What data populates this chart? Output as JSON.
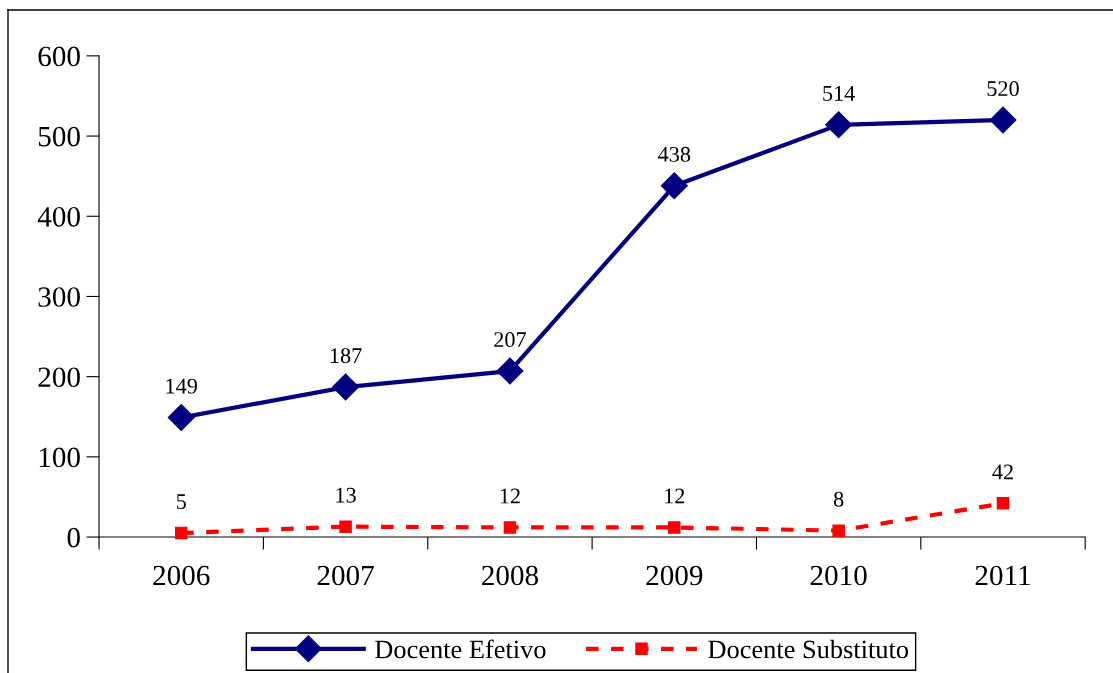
{
  "chart_data": {
    "type": "line",
    "categories": [
      "2006",
      "2007",
      "2008",
      "2009",
      "2010",
      "2011"
    ],
    "series": [
      {
        "name": "Docente Efetivo",
        "color": "#000080",
        "values": [
          149,
          187,
          207,
          438,
          514,
          520
        ],
        "marker": "diamond",
        "line_style": "solid"
      },
      {
        "name": "Docente Substituto",
        "color": "#ff0000",
        "values": [
          5,
          13,
          12,
          12,
          8,
          42
        ],
        "marker": "square",
        "line_style": "dashed"
      }
    ],
    "ylim": [
      0,
      600
    ],
    "yticks": [
      0,
      100,
      200,
      300,
      400,
      500,
      600
    ],
    "grid": false,
    "legend": "bottom",
    "data_labels": true
  }
}
